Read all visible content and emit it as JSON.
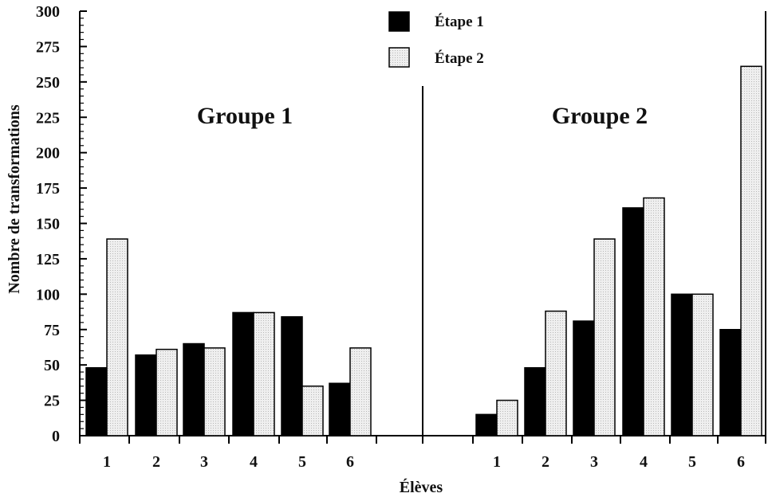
{
  "chart_data": {
    "type": "bar",
    "ylabel": "Nombre de transformations",
    "xlabel": "Élèves",
    "ylim": [
      0,
      300
    ],
    "yticks": [
      "0",
      "25",
      "50",
      "75",
      "100",
      "125",
      "150",
      "175",
      "200",
      "225",
      "250",
      "275",
      "300"
    ],
    "legend_position": "top-center",
    "series_colors": [
      "#000000",
      "#e6e6e6"
    ],
    "legend": [
      {
        "name": "Étape 1",
        "color": "#000000"
      },
      {
        "name": "Étape 2",
        "color": "#e6e6e6"
      }
    ],
    "groups": [
      {
        "title": "Groupe 1",
        "categories": [
          "1",
          "2",
          "3",
          "4",
          "5",
          "6"
        ],
        "series": [
          {
            "name": "Étape 1",
            "values": [
              48,
              57,
              65,
              87,
              84,
              37
            ]
          },
          {
            "name": "Étape 2",
            "values": [
              139,
              61,
              62,
              87,
              35,
              62
            ]
          }
        ]
      },
      {
        "title": "Groupe 2",
        "categories": [
          "1",
          "2",
          "3",
          "4",
          "5",
          "6"
        ],
        "series": [
          {
            "name": "Étape 1",
            "values": [
              15,
              48,
              81,
              161,
              100,
              75
            ]
          },
          {
            "name": "Étape 2",
            "values": [
              25,
              88,
              139,
              168,
              100,
              261
            ]
          }
        ]
      }
    ]
  }
}
